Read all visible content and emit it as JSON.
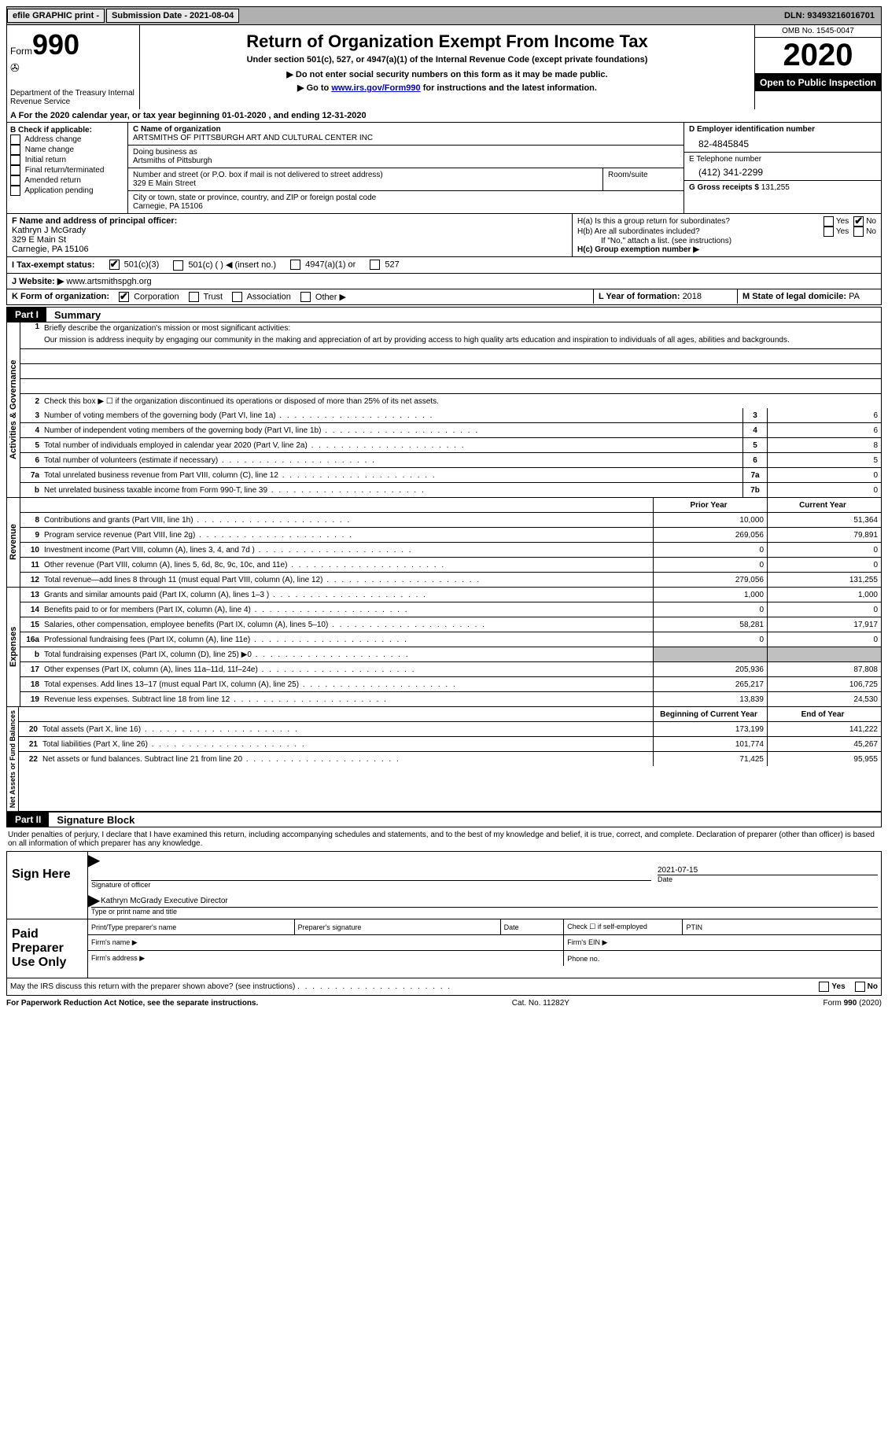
{
  "topbar": {
    "efile": "efile GRAPHIC print -",
    "submission": "Submission Date - 2021-08-04",
    "dln": "DLN:  93493216016701"
  },
  "header": {
    "form_prefix": "Form",
    "form_number": "990",
    "dept": "Department of the Treasury Internal Revenue Service",
    "title": "Return of Organization Exempt From Income Tax",
    "subtitle": "Under section 501(c), 527, or 4947(a)(1) of the Internal Revenue Code (except private foundations)",
    "note1": "▶ Do not enter social security numbers on this form as it may be made public.",
    "note2_prefix": "▶ Go to ",
    "note2_link": "www.irs.gov/Form990",
    "note2_suffix": " for instructions and the latest information.",
    "omb": "OMB No. 1545-0047",
    "year": "2020",
    "inspection": "Open to Public Inspection"
  },
  "rowA": "A For the 2020 calendar year, or tax year beginning 01-01-2020   , and ending 12-31-2020",
  "colB": {
    "header": "B Check if applicable:",
    "items": [
      "Address change",
      "Name change",
      "Initial return",
      "Final return/terminated",
      "Amended return",
      "Application pending"
    ]
  },
  "colC": {
    "name_label": "C Name of organization",
    "name": "ARTSMITHS OF PITTSBURGH ART AND CULTURAL CENTER INC",
    "dba_label": "Doing business as",
    "dba": "Artsmiths of Pittsburgh",
    "addr_label": "Number and street (or P.O. box if mail is not delivered to street address)",
    "room_label": "Room/suite",
    "addr": "329 E Main Street",
    "city_label": "City or town, state or province, country, and ZIP or foreign postal code",
    "city": "Carnegie, PA  15106"
  },
  "colD": {
    "ein_label": "D Employer identification number",
    "ein": "82-4845845",
    "phone_label": "E Telephone number",
    "phone": "(412) 341-2299",
    "receipts_label": "G Gross receipts $ ",
    "receipts": "131,255"
  },
  "rowF": {
    "label": "F  Name and address of principal officer:",
    "name": "Kathryn J McGrady",
    "addr1": "329 E Main St",
    "addr2": "Carnegie, PA  15106"
  },
  "rowH": {
    "ha": "H(a)  Is this a group return for subordinates?",
    "hb": "H(b)  Are all subordinates included?",
    "hb_note": "If \"No,\" attach a list. (see instructions)",
    "hc": "H(c)  Group exemption number ▶",
    "yes": "Yes",
    "no": "No"
  },
  "rowI": {
    "label": "I   Tax-exempt status:",
    "opts": [
      "501(c)(3)",
      "501(c) (  ) ◀ (insert no.)",
      "4947(a)(1) or",
      "527"
    ]
  },
  "rowJ": {
    "label": "J   Website: ▶  ",
    "val": "www.artsmithspgh.org"
  },
  "rowK": {
    "label": "K Form of organization:",
    "opts": [
      "Corporation",
      "Trust",
      "Association",
      "Other ▶"
    ]
  },
  "rowL": {
    "label": "L Year of formation: ",
    "val": "2018"
  },
  "rowM": {
    "label": "M State of legal domicile: ",
    "val": "PA"
  },
  "part1": {
    "label": "Part I",
    "title": "Summary"
  },
  "vlabels": {
    "gov": "Activities & Governance",
    "rev": "Revenue",
    "exp": "Expenses",
    "net": "Net Assets or Fund Balances"
  },
  "mission": {
    "label": "Briefly describe the organization's mission or most significant activities:",
    "text": "Our mission is address inequity by engaging our community in the making and appreciation of art by providing access to high quality arts education and inspiration to individuals of all ages, abilities and backgrounds."
  },
  "gov": {
    "r2": "Check this box ▶ ☐  if the organization discontinued its operations or disposed of more than 25% of its net assets.",
    "rows": [
      {
        "n": "3",
        "t": "Number of voting members of the governing body (Part VI, line 1a)",
        "box": "3",
        "v": "6"
      },
      {
        "n": "4",
        "t": "Number of independent voting members of the governing body (Part VI, line 1b)",
        "box": "4",
        "v": "6"
      },
      {
        "n": "5",
        "t": "Total number of individuals employed in calendar year 2020 (Part V, line 2a)",
        "box": "5",
        "v": "8"
      },
      {
        "n": "6",
        "t": "Total number of volunteers (estimate if necessary)",
        "box": "6",
        "v": "5"
      },
      {
        "n": "7a",
        "t": "Total unrelated business revenue from Part VIII, column (C), line 12",
        "box": "7a",
        "v": "0"
      },
      {
        "n": "b",
        "t": "Net unrelated business taxable income from Form 990-T, line 39",
        "box": "7b",
        "v": "0"
      }
    ]
  },
  "cols": {
    "prior": "Prior Year",
    "current": "Current Year",
    "begin": "Beginning of Current Year",
    "end": "End of Year"
  },
  "rev": [
    {
      "n": "8",
      "t": "Contributions and grants (Part VIII, line 1h)",
      "p": "10,000",
      "c": "51,364"
    },
    {
      "n": "9",
      "t": "Program service revenue (Part VIII, line 2g)",
      "p": "269,056",
      "c": "79,891"
    },
    {
      "n": "10",
      "t": "Investment income (Part VIII, column (A), lines 3, 4, and 7d )",
      "p": "0",
      "c": "0"
    },
    {
      "n": "11",
      "t": "Other revenue (Part VIII, column (A), lines 5, 6d, 8c, 9c, 10c, and 11e)",
      "p": "0",
      "c": "0"
    },
    {
      "n": "12",
      "t": "Total revenue—add lines 8 through 11 (must equal Part VIII, column (A), line 12)",
      "p": "279,056",
      "c": "131,255"
    }
  ],
  "exp": [
    {
      "n": "13",
      "t": "Grants and similar amounts paid (Part IX, column (A), lines 1–3 )",
      "p": "1,000",
      "c": "1,000"
    },
    {
      "n": "14",
      "t": "Benefits paid to or for members (Part IX, column (A), line 4)",
      "p": "0",
      "c": "0"
    },
    {
      "n": "15",
      "t": "Salaries, other compensation, employee benefits (Part IX, column (A), lines 5–10)",
      "p": "58,281",
      "c": "17,917"
    },
    {
      "n": "16a",
      "t": "Professional fundraising fees (Part IX, column (A), line 11e)",
      "p": "0",
      "c": "0"
    },
    {
      "n": "b",
      "t": "Total fundraising expenses (Part IX, column (D), line 25) ▶0",
      "p": "",
      "c": "",
      "shaded": true
    },
    {
      "n": "17",
      "t": "Other expenses (Part IX, column (A), lines 11a–11d, 11f–24e)",
      "p": "205,936",
      "c": "87,808"
    },
    {
      "n": "18",
      "t": "Total expenses. Add lines 13–17 (must equal Part IX, column (A), line 25)",
      "p": "265,217",
      "c": "106,725"
    },
    {
      "n": "19",
      "t": "Revenue less expenses. Subtract line 18 from line 12",
      "p": "13,839",
      "c": "24,530"
    }
  ],
  "net": [
    {
      "n": "20",
      "t": "Total assets (Part X, line 16)",
      "p": "173,199",
      "c": "141,222"
    },
    {
      "n": "21",
      "t": "Total liabilities (Part X, line 26)",
      "p": "101,774",
      "c": "45,267"
    },
    {
      "n": "22",
      "t": "Net assets or fund balances. Subtract line 21 from line 20",
      "p": "71,425",
      "c": "95,955"
    }
  ],
  "part2": {
    "label": "Part II",
    "title": "Signature Block"
  },
  "penalties": "Under penalties of perjury, I declare that I have examined this return, including accompanying schedules and statements, and to the best of my knowledge and belief, it is true, correct, and complete. Declaration of preparer (other than officer) is based on all information of which preparer has any knowledge.",
  "sign": {
    "left": "Sign Here",
    "sig_label": "Signature of officer",
    "date_label": "Date",
    "date": "2021-07-15",
    "name": "Kathryn McGrady  Executive Director",
    "name_label": "Type or print name and title"
  },
  "prep": {
    "left": "Paid Preparer Use Only",
    "h1": "Print/Type preparer's name",
    "h2": "Preparer's signature",
    "h3": "Date",
    "h4": "Check ☐ if self-employed",
    "h5": "PTIN",
    "firm_name": "Firm's name   ▶",
    "firm_ein": "Firm's EIN ▶",
    "firm_addr": "Firm's address ▶",
    "phone": "Phone no."
  },
  "discuss": "May the IRS discuss this return with the preparer shown above? (see instructions)",
  "footer": {
    "left": "For Paperwork Reduction Act Notice, see the separate instructions.",
    "mid": "Cat. No. 11282Y",
    "right_prefix": "Form ",
    "right_form": "990",
    "right_suffix": " (2020)"
  }
}
